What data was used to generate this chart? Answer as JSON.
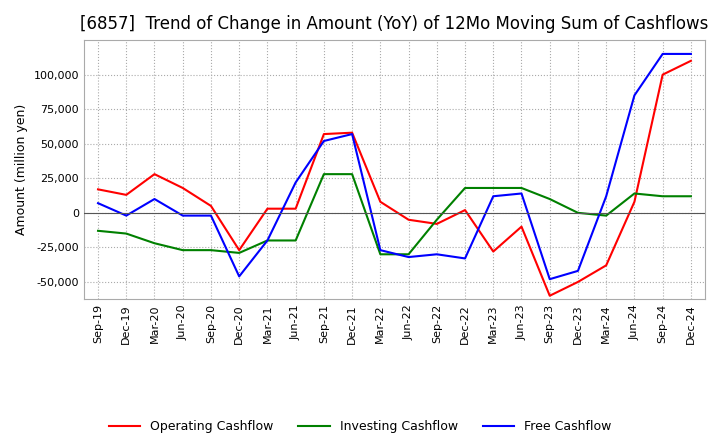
{
  "title": "[6857]  Trend of Change in Amount (YoY) of 12Mo Moving Sum of Cashflows",
  "ylabel": "Amount (million yen)",
  "x_labels": [
    "Sep-19",
    "Dec-19",
    "Mar-20",
    "Jun-20",
    "Sep-20",
    "Dec-20",
    "Mar-21",
    "Jun-21",
    "Sep-21",
    "Dec-21",
    "Mar-22",
    "Jun-22",
    "Sep-22",
    "Dec-22",
    "Mar-23",
    "Jun-23",
    "Sep-23",
    "Dec-23",
    "Mar-24",
    "Jun-24",
    "Sep-24",
    "Dec-24"
  ],
  "operating": [
    17000,
    13000,
    28000,
    18000,
    5000,
    -27000,
    3000,
    3000,
    57000,
    58000,
    8000,
    -5000,
    -8000,
    2000,
    -28000,
    -10000,
    -60000,
    -50000,
    -38000,
    8000,
    100000,
    110000
  ],
  "investing": [
    -13000,
    -15000,
    -22000,
    -27000,
    -27000,
    -29000,
    -20000,
    -20000,
    28000,
    28000,
    -30000,
    -30000,
    -5000,
    18000,
    18000,
    18000,
    10000,
    0,
    -2000,
    14000,
    12000,
    12000
  ],
  "free": [
    7000,
    -2000,
    10000,
    -2000,
    -2000,
    -46000,
    -20000,
    22000,
    52000,
    57000,
    -27000,
    -32000,
    -30000,
    -33000,
    12000,
    14000,
    -48000,
    -42000,
    12000,
    85000,
    115000,
    115000
  ],
  "ylim": [
    -62500,
    125000
  ],
  "yticks": [
    -50000,
    -25000,
    0,
    25000,
    50000,
    75000,
    100000
  ],
  "operating_color": "#ff0000",
  "investing_color": "#008000",
  "free_color": "#0000ff",
  "background_color": "#ffffff",
  "grid_color": "#aaaaaa",
  "title_fontsize": 12,
  "tick_fontsize": 8,
  "ylabel_fontsize": 9
}
